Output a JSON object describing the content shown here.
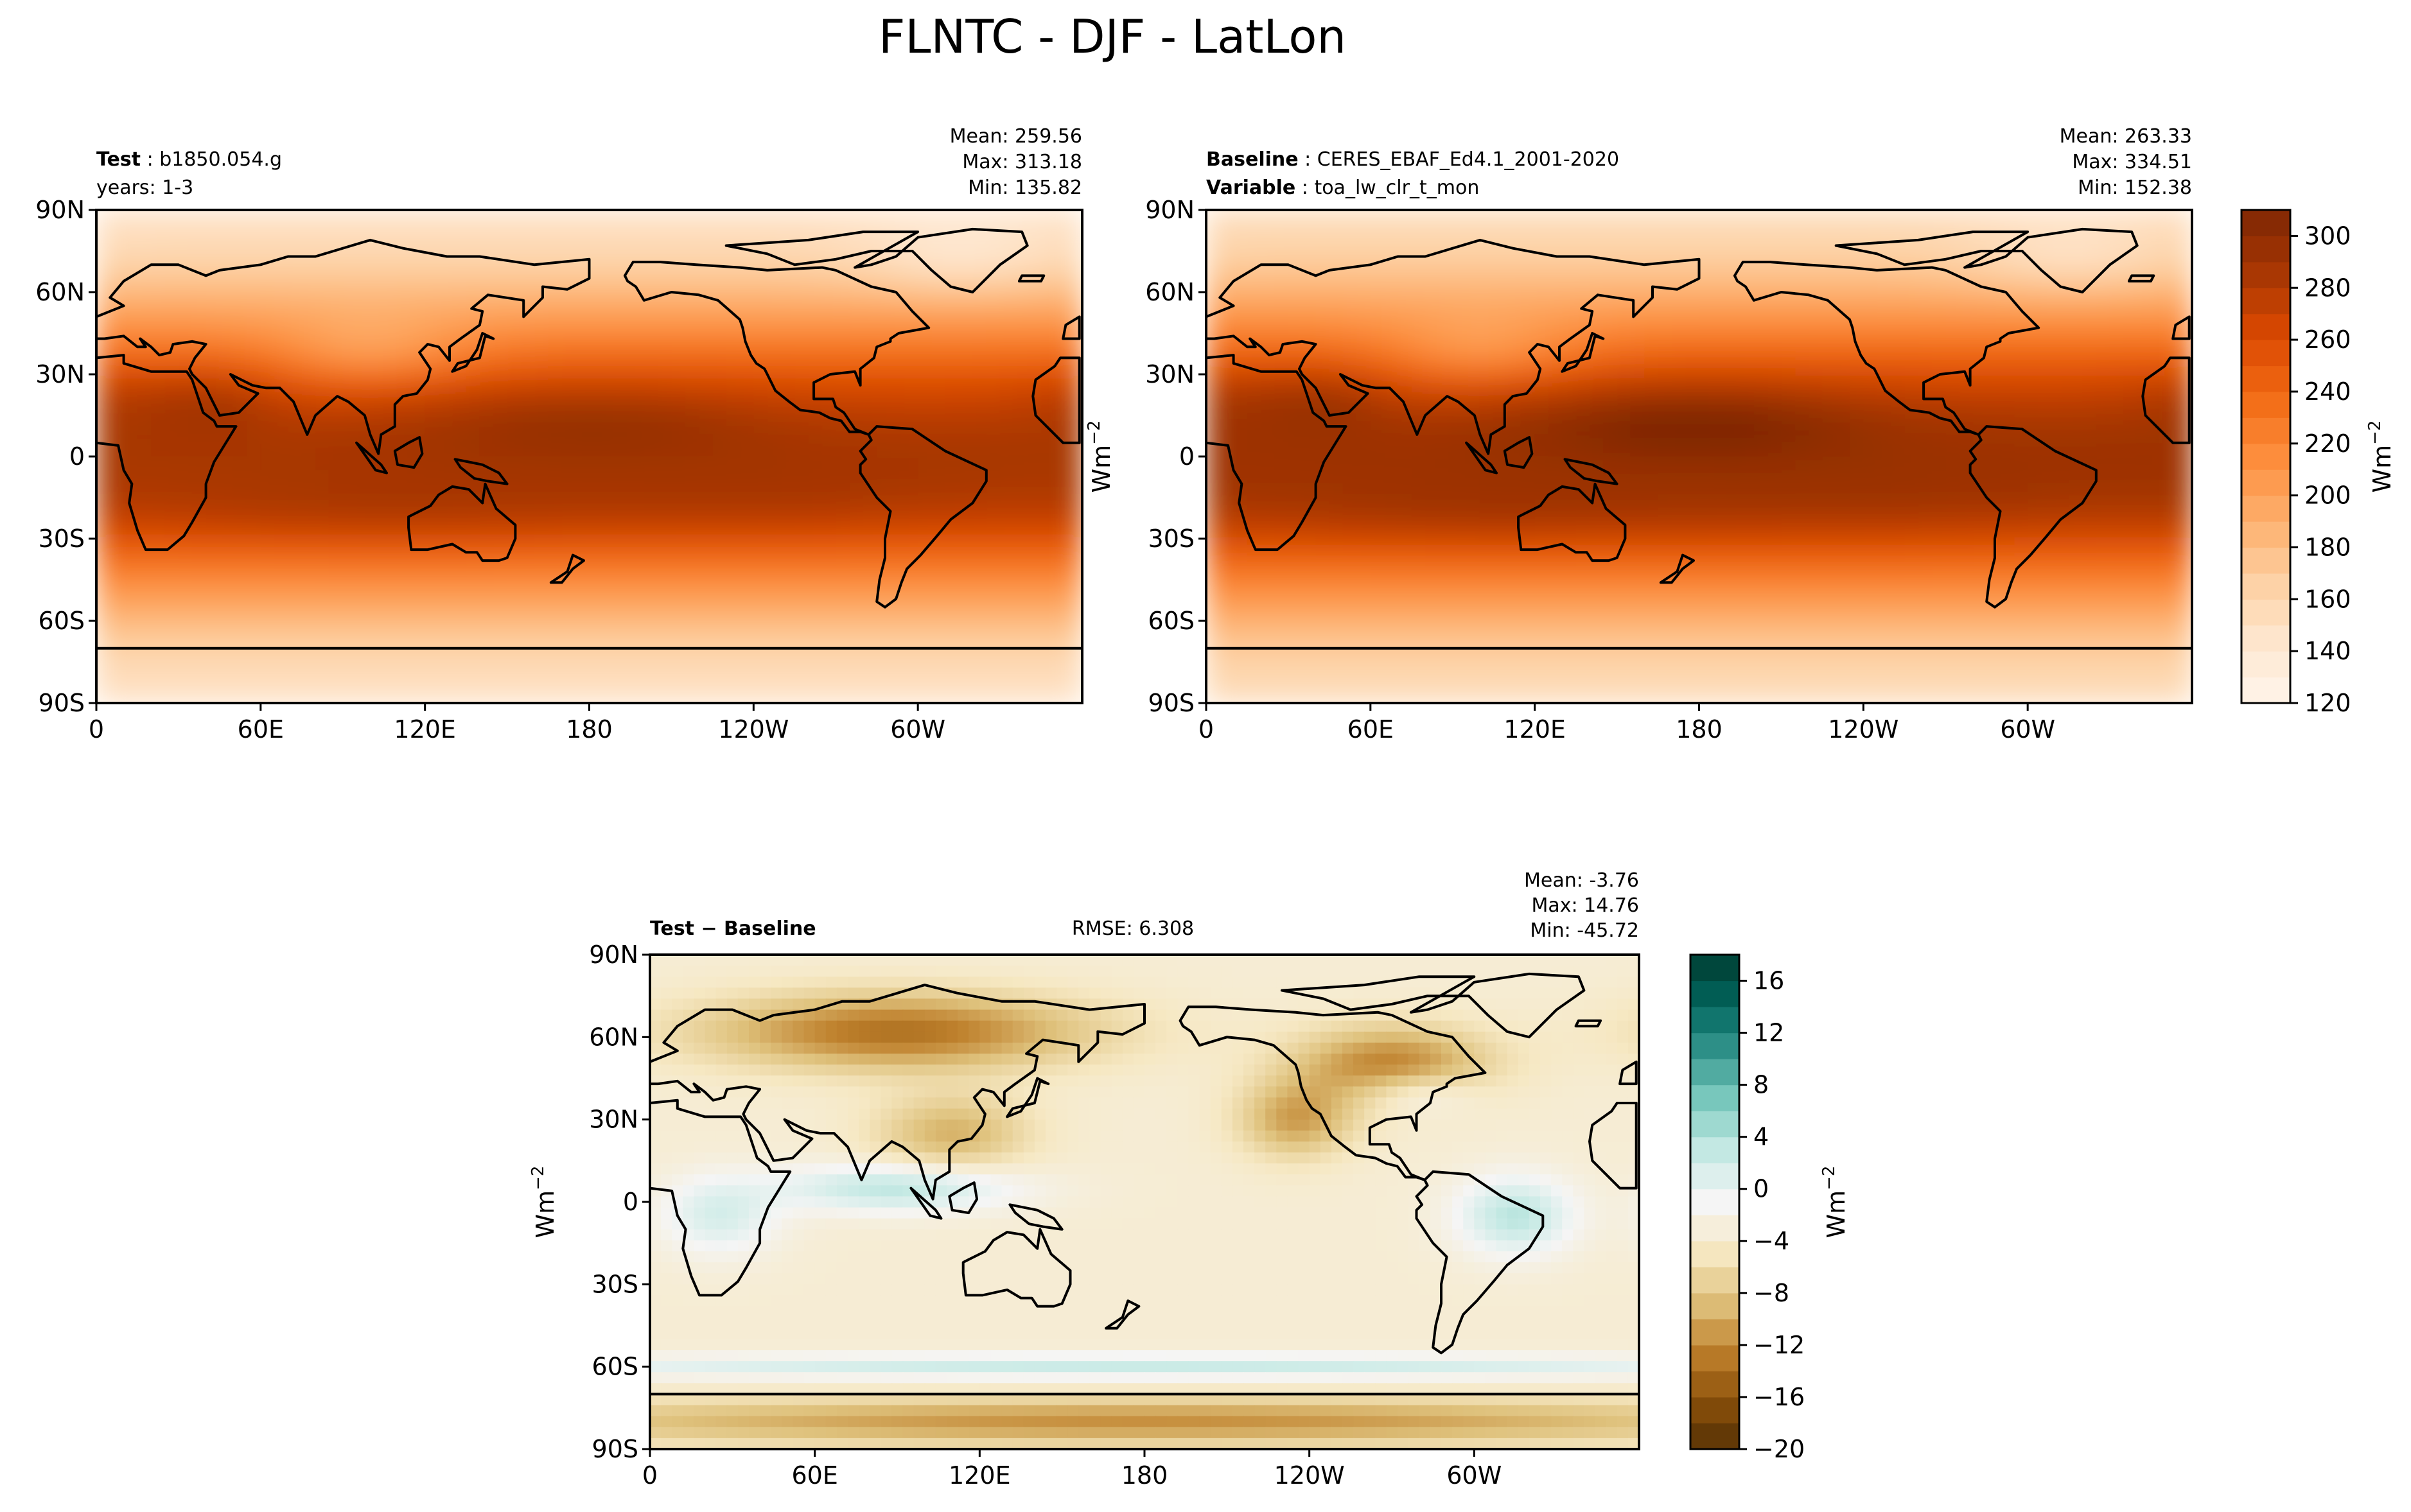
{
  "title": "FLNTC - DJF - LatLon",
  "colors": {
    "seq": [
      "#fff5eb",
      "#fee6ce",
      "#fdd0a2",
      "#fdae6b",
      "#fd8d3c",
      "#f16913",
      "#d94801",
      "#a63603",
      "#7f2704"
    ],
    "div": [
      "#543005",
      "#8c510a",
      "#bf812d",
      "#dfc27d",
      "#f6e8c3",
      "#f5f5f5",
      "#c7eae5",
      "#80cdc1",
      "#35978f",
      "#01665e",
      "#003c30"
    ],
    "land": "#ffffff"
  },
  "chart_data": [
    {
      "type": "heatmap",
      "panel": "test",
      "label_key": "Test",
      "label_sep": " : ",
      "label_value": "b1850.054.g",
      "line2": "years: 1-3",
      "stats": [
        "Mean: 259.56",
        "Max: 313.18",
        "Min: 135.82"
      ],
      "x_ticks": [
        "0",
        "60E",
        "120E",
        "180",
        "120W",
        "60W"
      ],
      "y_ticks": [
        "90S",
        "60S",
        "30S",
        "0",
        "30N",
        "60N",
        "90N"
      ],
      "xlim": [
        0,
        360
      ],
      "ylim": [
        -90,
        90
      ],
      "vmin": 120,
      "vmax": 310
    },
    {
      "type": "heatmap",
      "panel": "baseline",
      "label_key": "Baseline",
      "label_sep": " : ",
      "label_value": "CERES_EBAF_Ed4.1_2001-2020",
      "line2_key": "Variable",
      "line2_sep": " : ",
      "line2_value": "toa_lw_clr_t_mon",
      "stats": [
        "Mean: 263.33",
        "Max: 334.51",
        "Min: 152.38"
      ],
      "x_ticks": [
        "0",
        "60E",
        "120E",
        "180",
        "120W",
        "60W"
      ],
      "y_ticks": [
        "90S",
        "60S",
        "30S",
        "0",
        "30N",
        "60N",
        "90N"
      ],
      "xlim": [
        0,
        360
      ],
      "ylim": [
        -90,
        90
      ],
      "vmin": 120,
      "vmax": 310,
      "colorbar": {
        "label": "Wm",
        "label_sup": "−2",
        "ticks": [
          "120",
          "140",
          "160",
          "180",
          "200",
          "220",
          "240",
          "260",
          "280",
          "300"
        ]
      }
    },
    {
      "type": "heatmap",
      "panel": "diff",
      "label_key": "Test − Baseline",
      "rmse": "RMSE: 6.308",
      "stats": [
        "Mean: -3.76",
        "Max: 14.76",
        "Min: -45.72"
      ],
      "x_ticks": [
        "0",
        "60E",
        "120E",
        "180",
        "120W",
        "60W"
      ],
      "y_ticks": [
        "90S",
        "60S",
        "30S",
        "0",
        "30N",
        "60N",
        "90N"
      ],
      "xlim": [
        0,
        360
      ],
      "ylim": [
        -90,
        90
      ],
      "vmin": -20,
      "vmax": 18,
      "colorbar": {
        "label": "Wm",
        "label_sup": "−2",
        "ticks": [
          "−20",
          "−16",
          "−12",
          "−8",
          "−4",
          "0",
          "4",
          "8",
          "12",
          "16"
        ]
      }
    }
  ],
  "axis_label": "Wm",
  "axis_label_sup": "−2"
}
